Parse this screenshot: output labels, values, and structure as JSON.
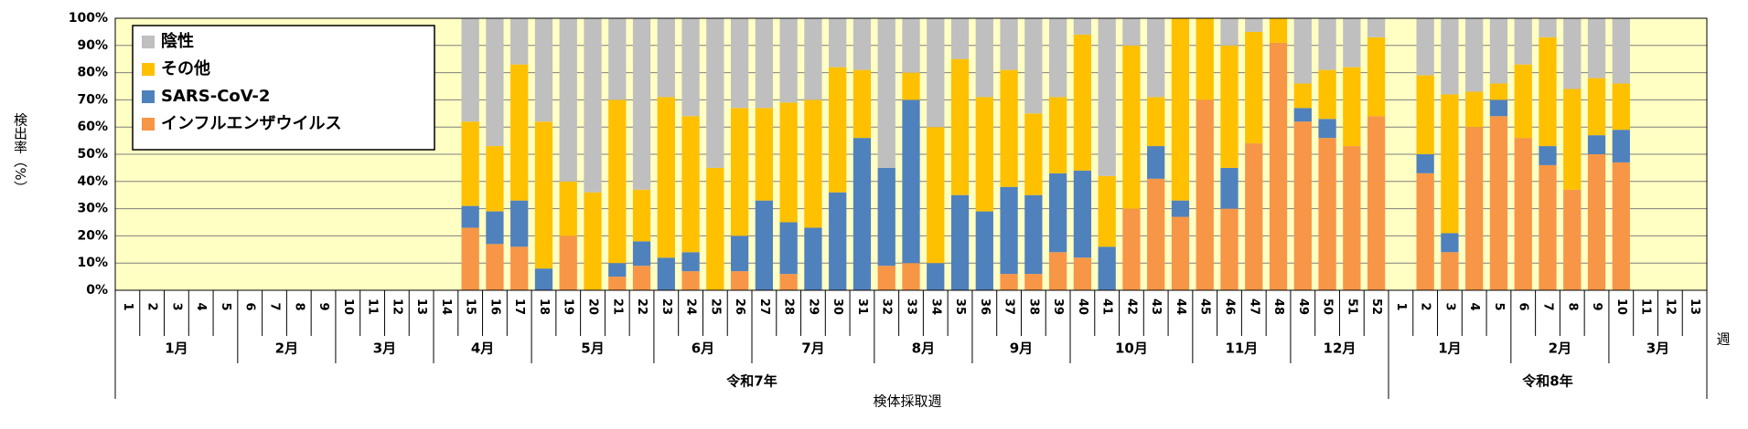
{
  "chart_data": {
    "type": "stacked_bar",
    "y_label": "検出率（%）",
    "x_label": "検体採取週",
    "x_unit": "週",
    "categories": [
      "1",
      "2",
      "3",
      "4",
      "5",
      "6",
      "7",
      "8",
      "9",
      "10",
      "11",
      "12",
      "13",
      "14",
      "15",
      "16",
      "17",
      "18",
      "19",
      "20",
      "21",
      "22",
      "23",
      "24",
      "25",
      "26",
      "27",
      "28",
      "29",
      "30",
      "31",
      "32",
      "33",
      "34",
      "35",
      "36",
      "37",
      "38",
      "39",
      "40",
      "41",
      "42",
      "43",
      "44",
      "45",
      "46",
      "47",
      "48",
      "49",
      "50",
      "51",
      "52",
      "1",
      "2",
      "3",
      "4",
      "5",
      "6",
      "7",
      "8",
      "9",
      "10",
      "11",
      "12",
      "13"
    ],
    "category_months": [
      "1月",
      "1月",
      "1月",
      "1月",
      "1月",
      "2月",
      "2月",
      "2月",
      "2月",
      "3月",
      "3月",
      "3月",
      "3月",
      "4月",
      "4月",
      "4月",
      "4月",
      "5月",
      "5月",
      "5月",
      "5月",
      "5月",
      "6月",
      "6月",
      "6月",
      "6月",
      "7月",
      "7月",
      "7月",
      "7月",
      "7月",
      "8月",
      "8月",
      "8月",
      "8月",
      "9月",
      "9月",
      "9月",
      "9月",
      "10月",
      "10月",
      "10月",
      "10月",
      "10月",
      "11月",
      "11月",
      "11月",
      "11月",
      "12月",
      "12月",
      "12月",
      "12月",
      "1月",
      "1月",
      "1月",
      "1月",
      "1月",
      "2月",
      "2月",
      "2月",
      "2月",
      "3月",
      "3月",
      "3月",
      "3月"
    ],
    "category_years": [
      "令和7年",
      "令和7年",
      "令和7年",
      "令和7年",
      "令和7年",
      "令和7年",
      "令和7年",
      "令和7年",
      "令和7年",
      "令和7年",
      "令和7年",
      "令和7年",
      "令和7年",
      "令和7年",
      "令和7年",
      "令和7年",
      "令和7年",
      "令和7年",
      "令和7年",
      "令和7年",
      "令和7年",
      "令和7年",
      "令和7年",
      "令和7年",
      "令和7年",
      "令和7年",
      "令和7年",
      "令和7年",
      "令和7年",
      "令和7年",
      "令和7年",
      "令和7年",
      "令和7年",
      "令和7年",
      "令和7年",
      "令和7年",
      "令和7年",
      "令和7年",
      "令和7年",
      "令和7年",
      "令和7年",
      "令和7年",
      "令和7年",
      "令和7年",
      "令和7年",
      "令和7年",
      "令和7年",
      "令和7年",
      "令和7年",
      "令和7年",
      "令和7年",
      "令和7年",
      "令和8年",
      "令和8年",
      "令和8年",
      "令和8年",
      "令和8年",
      "令和8年",
      "令和8年",
      "令和8年",
      "令和8年",
      "令和8年",
      "令和8年",
      "令和8年",
      "令和8年"
    ],
    "series": [
      {
        "name": "インフルエンザウイルス",
        "color": "#f79646",
        "values": [
          null,
          null,
          null,
          null,
          null,
          null,
          null,
          null,
          null,
          null,
          null,
          null,
          null,
          null,
          23,
          17,
          16,
          0,
          20,
          0,
          5,
          9,
          0,
          7,
          0,
          7,
          0,
          6,
          0,
          0,
          0,
          9,
          10,
          0,
          0,
          0,
          6,
          6,
          14,
          12,
          0,
          30,
          41,
          27,
          70,
          30,
          54,
          91,
          62,
          56,
          53,
          64,
          null,
          43,
          14,
          60,
          64,
          56,
          46,
          37,
          50,
          47,
          null,
          null,
          null
        ]
      },
      {
        "name": "SARS-CoV-2",
        "color": "#4f81bd",
        "values": [
          null,
          null,
          null,
          null,
          null,
          null,
          null,
          null,
          null,
          null,
          null,
          null,
          null,
          null,
          8,
          12,
          17,
          8,
          0,
          0,
          5,
          9,
          12,
          7,
          0,
          13,
          33,
          19,
          23,
          36,
          56,
          36,
          60,
          10,
          35,
          29,
          32,
          29,
          29,
          32,
          16,
          0,
          12,
          6,
          0,
          15,
          0,
          0,
          5,
          7,
          0,
          0,
          null,
          7,
          7,
          0,
          6,
          0,
          7,
          0,
          7,
          12,
          null,
          null,
          null
        ]
      },
      {
        "name": "その他",
        "color": "#ffc000",
        "values": [
          null,
          null,
          null,
          null,
          null,
          null,
          null,
          null,
          null,
          null,
          null,
          null,
          null,
          null,
          31,
          24,
          50,
          54,
          20,
          36,
          60,
          19,
          59,
          50,
          45,
          47,
          34,
          44,
          47,
          46,
          25,
          0,
          10,
          50,
          50,
          42,
          43,
          30,
          28,
          50,
          26,
          60,
          18,
          67,
          30,
          45,
          41,
          9,
          9,
          18,
          29,
          29,
          null,
          29,
          51,
          13,
          6,
          27,
          40,
          37,
          21,
          17,
          null,
          null,
          null
        ]
      },
      {
        "name": "陰性",
        "color": "#bfbfbf",
        "values": [
          null,
          null,
          null,
          null,
          null,
          null,
          null,
          null,
          null,
          null,
          null,
          null,
          null,
          null,
          38,
          47,
          17,
          38,
          60,
          64,
          30,
          63,
          29,
          36,
          55,
          33,
          33,
          31,
          30,
          18,
          19,
          55,
          20,
          40,
          15,
          29,
          19,
          35,
          29,
          6,
          58,
          10,
          29,
          0,
          0,
          10,
          5,
          0,
          24,
          19,
          18,
          7,
          null,
          21,
          28,
          27,
          24,
          17,
          7,
          26,
          22,
          24,
          null,
          null,
          null
        ]
      }
    ],
    "ylim": [
      0,
      100
    ],
    "yticks": [
      {
        "value": 0,
        "label": "0%"
      },
      {
        "value": 10,
        "label": "10%"
      },
      {
        "value": 20,
        "label": "20%"
      },
      {
        "value": 30,
        "label": "30%"
      },
      {
        "value": 40,
        "label": "40%"
      },
      {
        "value": 50,
        "label": "50%"
      },
      {
        "value": 60,
        "label": "60%"
      },
      {
        "value": 70,
        "label": "70%"
      },
      {
        "value": 80,
        "label": "80%"
      },
      {
        "value": 90,
        "label": "90%"
      },
      {
        "value": 100,
        "label": "100%"
      }
    ],
    "grid": true,
    "legend": "upper left"
  }
}
